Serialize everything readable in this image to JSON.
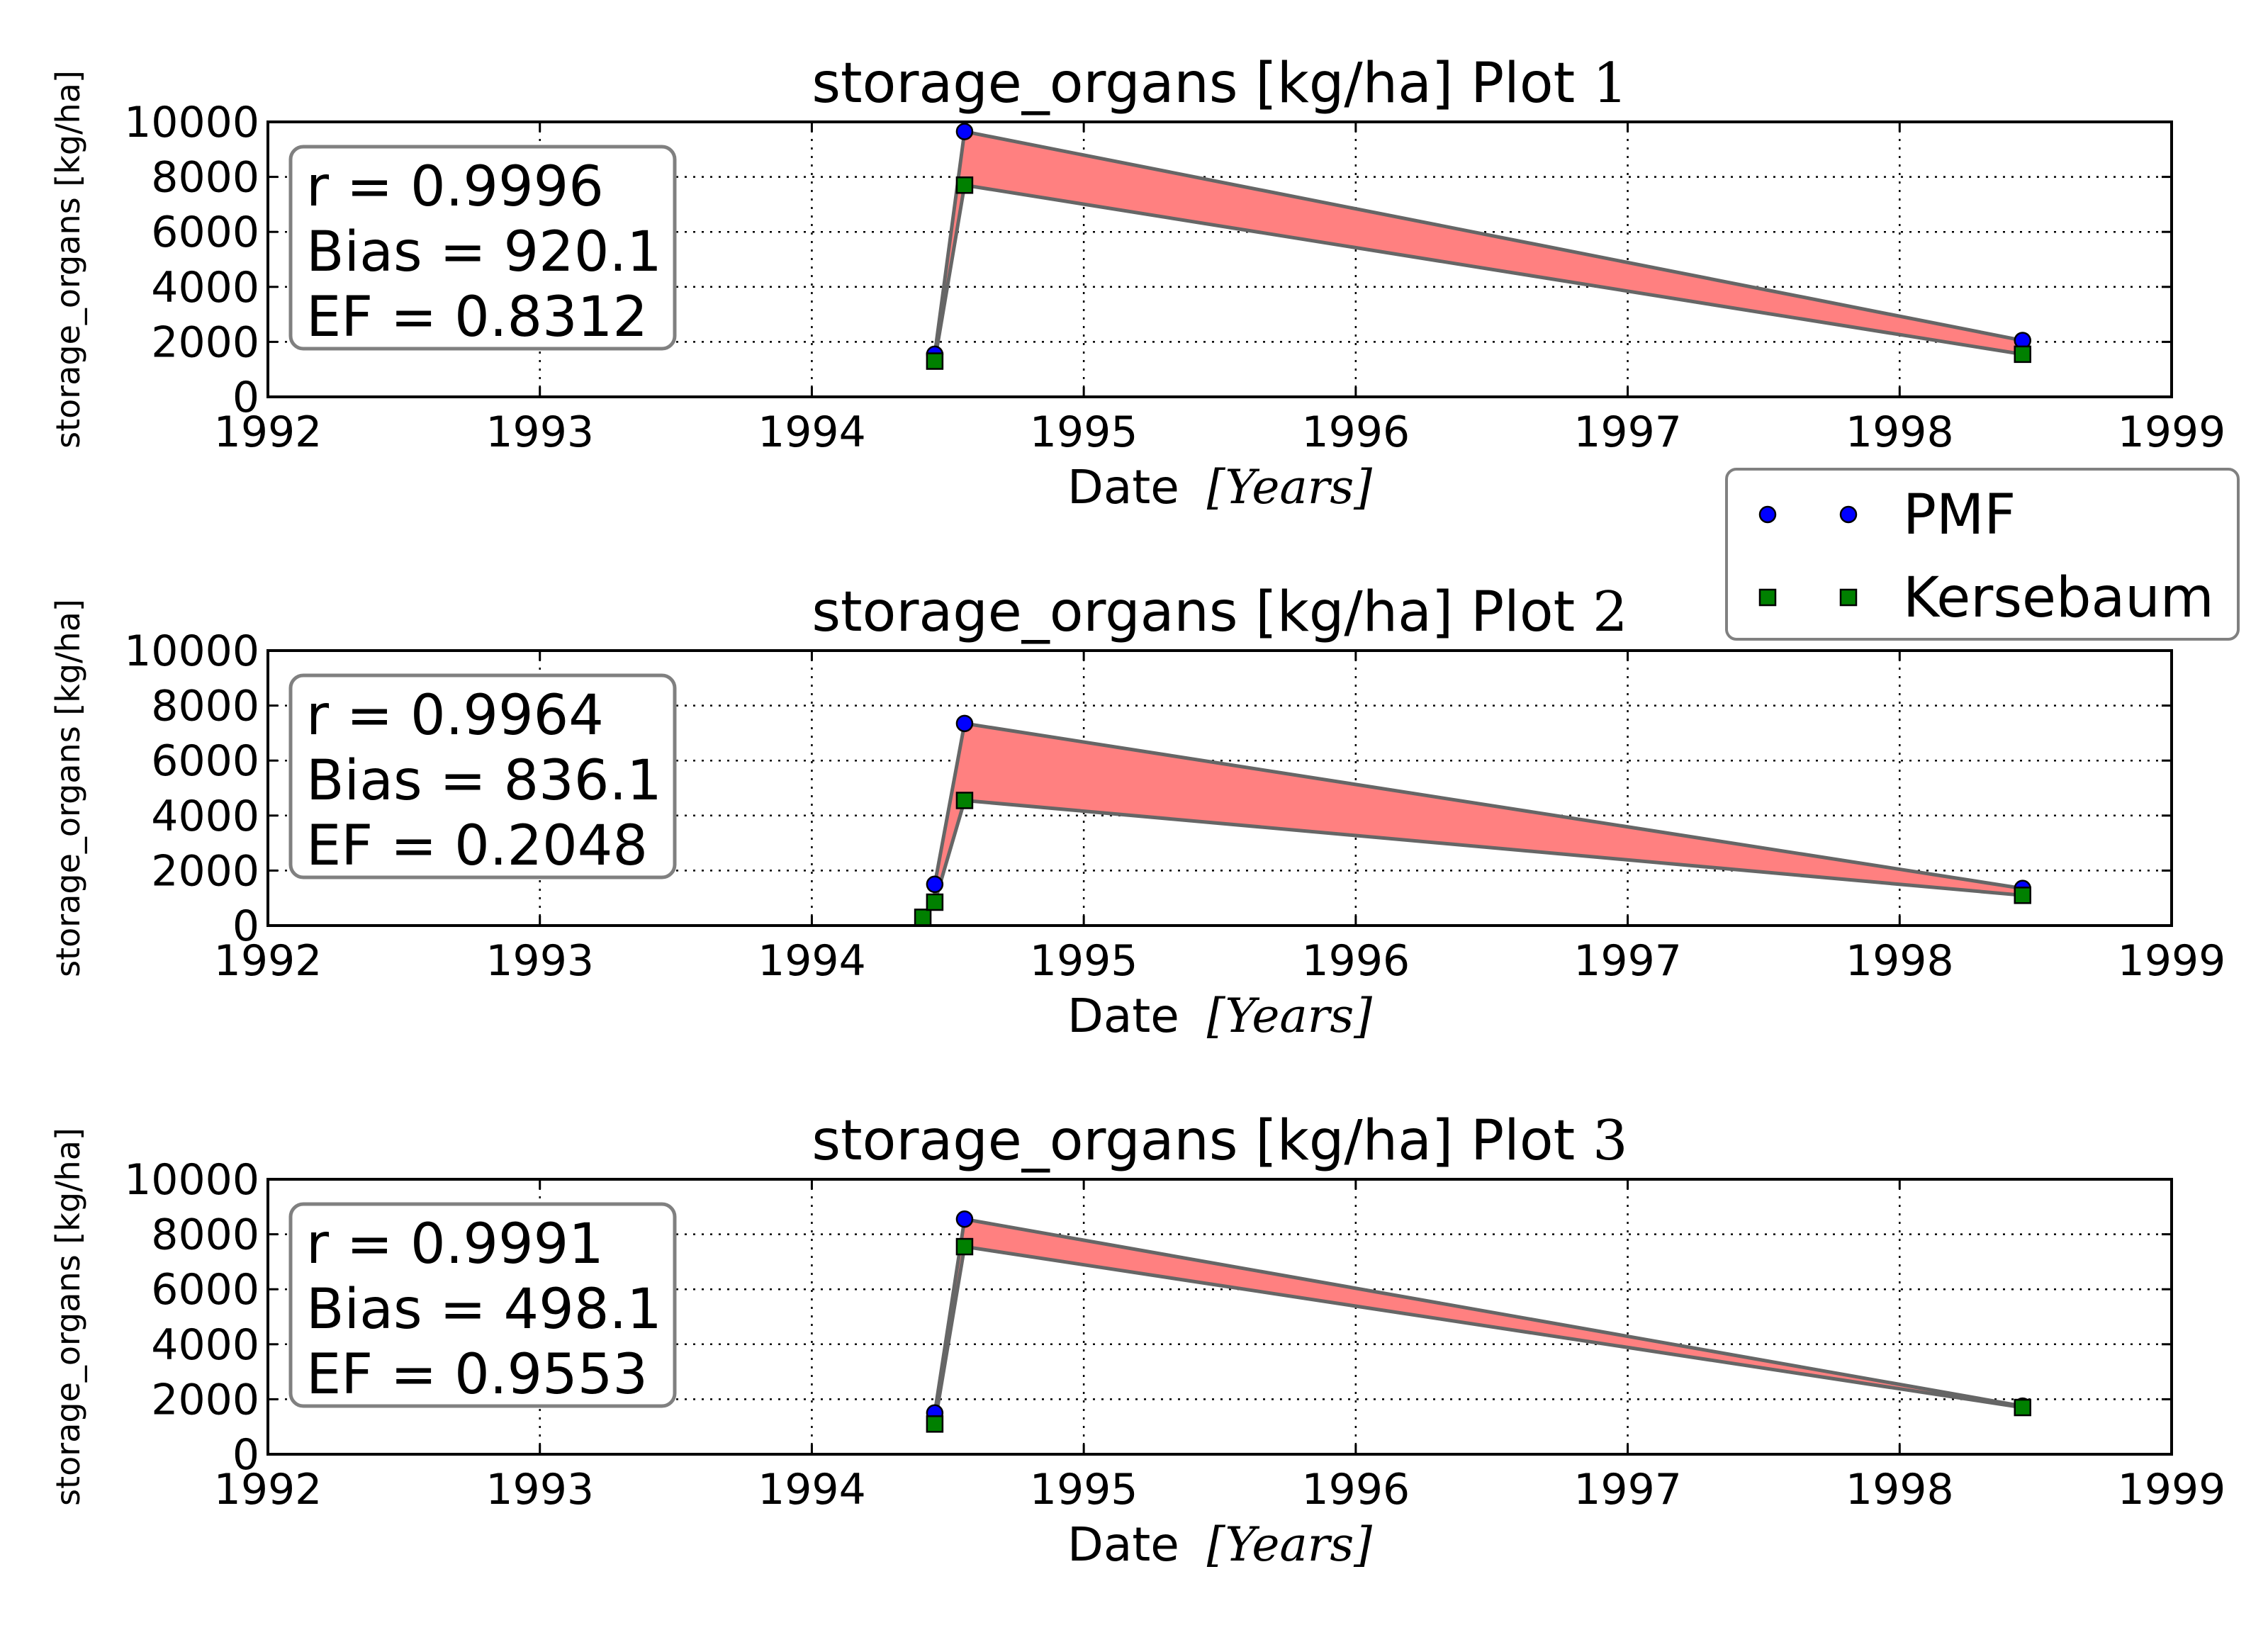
{
  "colors": {
    "pmf_marker": "#0000ff",
    "kersebaum_marker": "#008000",
    "band_fill": "#ff8080",
    "band_edge": "#666666",
    "box_edge": "#808080",
    "grid": "#000000"
  },
  "legend": {
    "placement": "right, between plot 1 and plot 2",
    "items": [
      {
        "label": "PMF",
        "marker": "circle",
        "color": "#0000ff"
      },
      {
        "label": "Kersebaum",
        "marker": "square",
        "color": "#008000"
      }
    ]
  },
  "chart_data": [
    {
      "type": "scatter",
      "title": "storage_organs [kg/ha] Plot 1",
      "title_prefix": "storage_organs [kg/ha] Plot ",
      "title_number": "1",
      "xlabel_prefix": "Date ",
      "xlabel_math": "[Years]",
      "ylabel": "storage_organs [kg/ha]",
      "xlim": [
        1992,
        1999
      ],
      "ylim": [
        0,
        10000
      ],
      "xticks": [
        "1992",
        "1993",
        "1994",
        "1995",
        "1996",
        "1997",
        "1998",
        "1999"
      ],
      "yticks": [
        "0",
        "2000",
        "4000",
        "6000",
        "8000",
        "10000"
      ],
      "grid": true,
      "stats": [
        "r = 0.9996",
        "Bias = 920.1",
        "EF = 0.8312"
      ],
      "series": [
        {
          "name": "PMF",
          "marker": "circle",
          "x": [
            "1994-06-15",
            "1994-07-25",
            "1998-06-15"
          ],
          "y": [
            1550,
            9650,
            2050
          ]
        },
        {
          "name": "Kersebaum",
          "marker": "square",
          "x": [
            "1994-06-15",
            "1994-07-25",
            "1998-06-15"
          ],
          "y": [
            1300,
            7700,
            1550
          ]
        }
      ]
    },
    {
      "type": "scatter",
      "title": "storage_organs [kg/ha] Plot 2",
      "title_prefix": "storage_organs [kg/ha] Plot ",
      "title_number": "2",
      "xlabel_prefix": "Date ",
      "xlabel_math": "[Years]",
      "ylabel": "storage_organs [kg/ha]",
      "xlim": [
        1992,
        1999
      ],
      "ylim": [
        0,
        10000
      ],
      "xticks": [
        "1992",
        "1993",
        "1994",
        "1995",
        "1996",
        "1997",
        "1998",
        "1999"
      ],
      "yticks": [
        "0",
        "2000",
        "4000",
        "6000",
        "8000",
        "10000"
      ],
      "grid": true,
      "stats": [
        "r = 0.9964",
        "Bias = 836.1",
        "EF = 0.2048"
      ],
      "series": [
        {
          "name": "PMF",
          "marker": "circle",
          "x": [
            "1994-06-15",
            "1994-07-25",
            "1998-06-15"
          ],
          "y": [
            1500,
            7350,
            1350
          ]
        },
        {
          "name": "Kersebaum",
          "marker": "square",
          "x": [
            "1994-05-30",
            "1994-06-15",
            "1994-07-25",
            "1998-06-15"
          ],
          "y": [
            300,
            850,
            4550,
            1100
          ]
        }
      ]
    },
    {
      "type": "scatter",
      "title": "storage_organs [kg/ha] Plot 3",
      "title_prefix": "storage_organs [kg/ha] Plot ",
      "title_number": "3",
      "xlabel_prefix": "Date ",
      "xlabel_math": "[Years]",
      "ylabel": "storage_organs [kg/ha]",
      "xlim": [
        1992,
        1999
      ],
      "ylim": [
        0,
        10000
      ],
      "xticks": [
        "1992",
        "1993",
        "1994",
        "1995",
        "1996",
        "1997",
        "1998",
        "1999"
      ],
      "yticks": [
        "0",
        "2000",
        "4000",
        "6000",
        "8000",
        "10000"
      ],
      "grid": true,
      "stats": [
        "r = 0.9991",
        "Bias = 498.1",
        "EF = 0.9553"
      ],
      "series": [
        {
          "name": "PMF",
          "marker": "circle",
          "x": [
            "1994-06-15",
            "1994-07-25",
            "1998-06-15"
          ],
          "y": [
            1500,
            8550,
            1750
          ]
        },
        {
          "name": "Kersebaum",
          "marker": "square",
          "x": [
            "1994-06-15",
            "1994-07-25",
            "1998-06-15"
          ],
          "y": [
            1100,
            7550,
            1700
          ]
        }
      ]
    }
  ]
}
